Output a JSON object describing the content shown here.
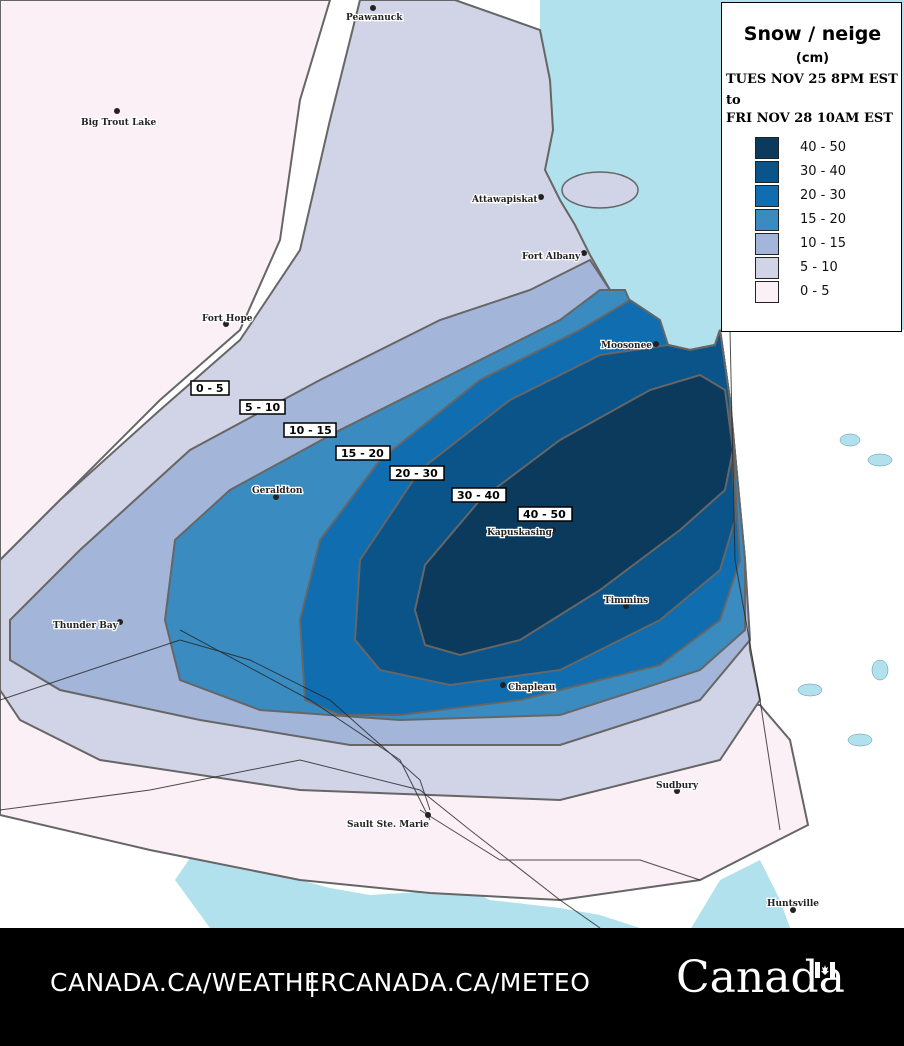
{
  "legend": {
    "title": "Snow / neige",
    "unit": "(cm)",
    "period_line1": "TUES NOV 25 8PM EST",
    "period_line2": "to",
    "period_line3": "FRI NOV 28 10AM EST",
    "classes": [
      {
        "label": "40 - 50",
        "color": "#0b3a5c"
      },
      {
        "label": "30 - 40",
        "color": "#0a5489"
      },
      {
        "label": "20 - 30",
        "color": "#0f6db0"
      },
      {
        "label": "15 - 20",
        "color": "#3a8cc0"
      },
      {
        "label": "10 - 15",
        "color": "#a3b6d9"
      },
      {
        "label": "5 - 10",
        "color": "#d1d3e6"
      },
      {
        "label": "0 - 5",
        "color": "#fbf0f5"
      }
    ]
  },
  "contour_labels": [
    "0 - 5",
    "5 - 10",
    "10 - 15",
    "15 - 20",
    "20 - 30",
    "30 - 40",
    "40 - 50"
  ],
  "cities": [
    "Peawanuck",
    "Big Trout Lake",
    "Attawapiskat",
    "Fort Albany",
    "Fort Hope",
    "Moosonee",
    "Geraldton",
    "Kapuskasing",
    "Timmins",
    "Thunder Bay",
    "Chapleau",
    "Sudbury",
    "Sault Ste. Marie",
    "Huntsville"
  ],
  "footer": {
    "link_en": "CANADA.CA/WEATHER",
    "separator": "|",
    "link_fr": "CANADA.CA/METEO",
    "wordmark": "Canada"
  },
  "colors": {
    "water": "#b2e1ee",
    "land": "#ffffff",
    "contour_line": "#666666",
    "footer_bg": "#000000"
  }
}
